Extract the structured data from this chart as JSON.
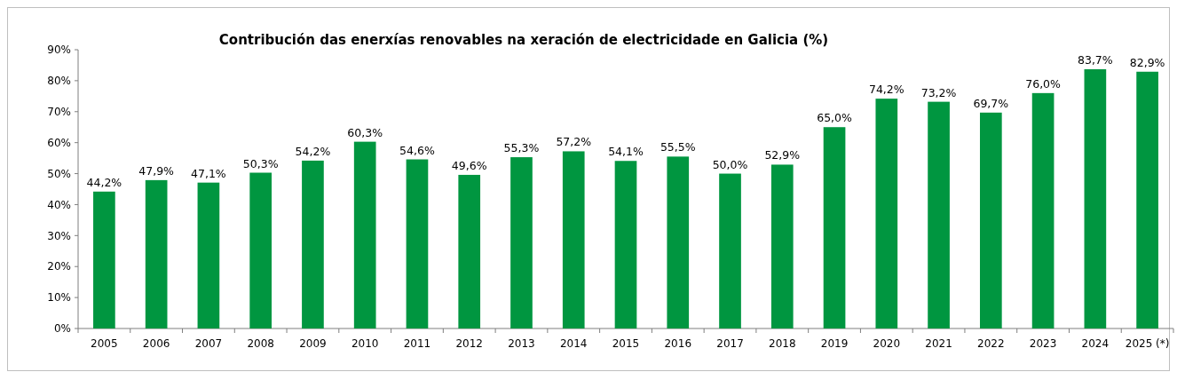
{
  "chart_data": {
    "type": "bar",
    "title": "Contribución das enerxías renovables na xeración de electricidade  en Galicia (%)",
    "categories": [
      "2005",
      "2006",
      "2007",
      "2008",
      "2009",
      "2010",
      "2011",
      "2012",
      "2013",
      "2014",
      "2015",
      "2016",
      "2017",
      "2018",
      "2019",
      "2020",
      "2021",
      "2022",
      "2023",
      "2024",
      "2025 (*)"
    ],
    "values": [
      44.2,
      47.9,
      47.1,
      50.3,
      54.2,
      60.3,
      54.6,
      49.6,
      55.3,
      57.2,
      54.1,
      55.5,
      50.0,
      52.9,
      65.0,
      74.2,
      73.2,
      69.7,
      76.0,
      83.7,
      82.9
    ],
    "value_labels": [
      "44,2%",
      "47,9%",
      "47,1%",
      "50,3%",
      "54,2%",
      "60,3%",
      "54,6%",
      "49,6%",
      "55,3%",
      "57,2%",
      "54,1%",
      "55,5%",
      "50,0%",
      "52,9%",
      "65,0%",
      "74,2%",
      "73,2%",
      "69,7%",
      "76,0%",
      "83,7%",
      "82,9%"
    ],
    "color": "#009640",
    "ylim": [
      0,
      90
    ],
    "yticks": [
      {
        "value": 0,
        "label": "0%"
      },
      {
        "value": 10,
        "label": "10%"
      },
      {
        "value": 20,
        "label": "20%"
      },
      {
        "value": 30,
        "label": "30%"
      },
      {
        "value": 40,
        "label": "40%"
      },
      {
        "value": 50,
        "label": "50%"
      },
      {
        "value": 60,
        "label": "60%"
      },
      {
        "value": 70,
        "label": "70%"
      },
      {
        "value": 80,
        "label": "80%"
      },
      {
        "value": 90,
        "label": "90%"
      }
    ],
    "grid": false
  }
}
